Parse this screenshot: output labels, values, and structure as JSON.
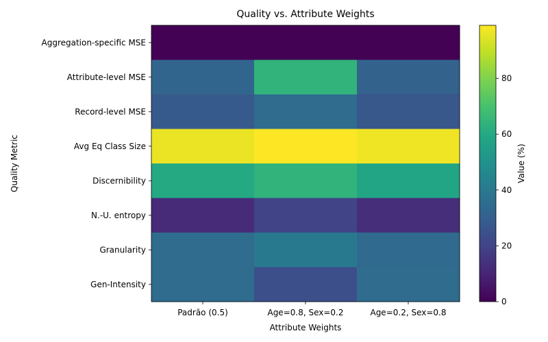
{
  "chart_data": {
    "type": "heatmap",
    "title": "Quality vs. Attribute Weights",
    "xlabel": "Attribute Weights",
    "ylabel": "Quality Metric",
    "x_categories": [
      "Padrão (0.5)",
      "Age=0.8, Sex=0.2",
      "Age=0.2, Sex=0.8"
    ],
    "y_categories": [
      "Aggregation-specific MSE",
      "Attribute-level MSE",
      "Record-level MSE",
      "Avg Eq Class Size",
      "Discernibility",
      "N.-U. entropy",
      "Granularity",
      "Gen-Intensity"
    ],
    "values": [
      [
        0.3,
        0.3,
        0.3
      ],
      [
        32,
        64,
        31
      ],
      [
        28,
        35,
        27
      ],
      [
        96,
        99,
        97
      ],
      [
        60,
        64,
        58
      ],
      [
        12,
        20,
        13
      ],
      [
        35,
        40,
        34
      ],
      [
        35,
        24,
        35
      ]
    ],
    "colorbar": {
      "label": "Value (%)",
      "range": [
        0,
        99
      ],
      "ticks": [
        0,
        20,
        40,
        60,
        80
      ],
      "colormap": "viridis"
    }
  }
}
